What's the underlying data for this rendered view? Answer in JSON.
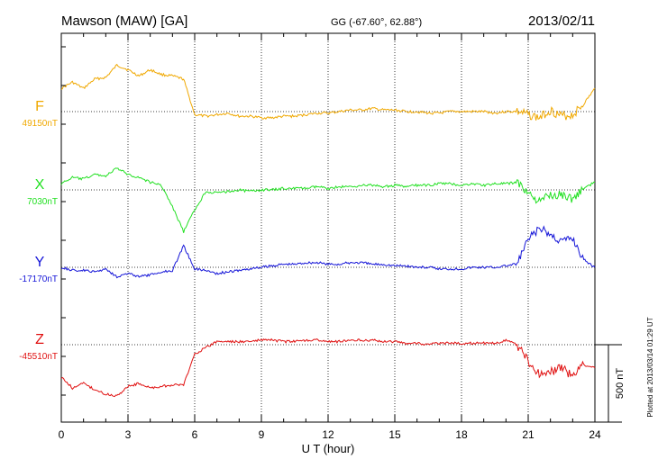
{
  "header": {
    "station": "Mawson (MAW)  [GA]",
    "coords": "GG (-67.60°,  62.88°)",
    "date": "2013/02/11"
  },
  "footer_note": "Plotted at 2013/03/14 01:29 UT",
  "chart_data": {
    "type": "line",
    "title": "Mawson (MAW)  [GA]",
    "xlabel": "U T (hour)",
    "xlim": [
      0,
      24
    ],
    "x_ticks": [
      "0",
      "3",
      "6",
      "9",
      "12",
      "15",
      "18",
      "21",
      "24"
    ],
    "grid": "dotted vertical lines every 3 hours",
    "scale_bar": {
      "label": "500 nT",
      "value_nT": 500
    },
    "x": [
      0,
      0.5,
      1,
      1.5,
      2,
      2.5,
      3,
      3.5,
      4,
      4.5,
      5,
      5.5,
      6,
      6.5,
      7,
      7.5,
      8,
      8.5,
      9,
      9.5,
      10,
      10.5,
      11,
      11.5,
      12,
      12.5,
      13,
      13.5,
      14,
      14.5,
      15,
      15.5,
      16,
      16.5,
      17,
      17.5,
      18,
      18.5,
      19,
      19.5,
      20,
      20.5,
      21,
      21.5,
      22,
      22.5,
      23,
      23.5,
      24
    ],
    "series": [
      {
        "name": "F",
        "baseline_label": "49150nT",
        "baseline_nT": 49150,
        "color": "#f0a800",
        "values": [
          49300,
          49340,
          49300,
          49360,
          49370,
          49450,
          49420,
          49380,
          49420,
          49390,
          49380,
          49360,
          49130,
          49120,
          49130,
          49140,
          49120,
          49120,
          49110,
          49110,
          49120,
          49120,
          49130,
          49140,
          49140,
          49150,
          49160,
          49160,
          49170,
          49160,
          49160,
          49150,
          49150,
          49140,
          49140,
          49150,
          49150,
          49150,
          49150,
          49140,
          49150,
          49150,
          49130,
          49110,
          49160,
          49120,
          49130,
          49200,
          49300
        ]
      },
      {
        "name": "X",
        "baseline_label": "7030nT",
        "baseline_nT": 7030,
        "color": "#22e022",
        "values": [
          7070,
          7110,
          7100,
          7130,
          7120,
          7170,
          7130,
          7110,
          7080,
          7060,
          6920,
          6760,
          6900,
          7020,
          7010,
          7020,
          7030,
          7020,
          7030,
          7030,
          7040,
          7040,
          7040,
          7050,
          7040,
          7050,
          7050,
          7060,
          7060,
          7050,
          7060,
          7050,
          7060,
          7060,
          7070,
          7070,
          7060,
          7070,
          7060,
          7070,
          7070,
          7080,
          7010,
          6950,
          7000,
          7000,
          6970,
          7040,
          7080
        ]
      },
      {
        "name": "Y",
        "baseline_label": "-17170nT",
        "baseline_nT": -17170,
        "color": "#1515d8",
        "values": [
          -17170,
          -17190,
          -17190,
          -17200,
          -17180,
          -17230,
          -17210,
          -17230,
          -17220,
          -17200,
          -17190,
          -17030,
          -17180,
          -17190,
          -17210,
          -17200,
          -17190,
          -17180,
          -17170,
          -17160,
          -17150,
          -17150,
          -17140,
          -17140,
          -17150,
          -17150,
          -17140,
          -17140,
          -17150,
          -17150,
          -17160,
          -17160,
          -17170,
          -17170,
          -17180,
          -17180,
          -17180,
          -17170,
          -17170,
          -17170,
          -17160,
          -17150,
          -16990,
          -16920,
          -16960,
          -17000,
          -16980,
          -17120,
          -17170
        ]
      },
      {
        "name": "Z",
        "baseline_label": "-45510nT",
        "baseline_nT": -45510,
        "color": "#e01010",
        "values": [
          -45720,
          -45790,
          -45760,
          -45800,
          -45830,
          -45840,
          -45780,
          -45760,
          -45790,
          -45780,
          -45770,
          -45770,
          -45570,
          -45530,
          -45490,
          -45490,
          -45490,
          -45490,
          -45480,
          -45480,
          -45490,
          -45490,
          -45480,
          -45480,
          -45490,
          -45490,
          -45480,
          -45480,
          -45480,
          -45490,
          -45490,
          -45500,
          -45500,
          -45510,
          -45500,
          -45500,
          -45500,
          -45500,
          -45500,
          -45500,
          -45480,
          -45510,
          -45620,
          -45700,
          -45690,
          -45650,
          -45720,
          -45640,
          -45660
        ]
      }
    ]
  }
}
